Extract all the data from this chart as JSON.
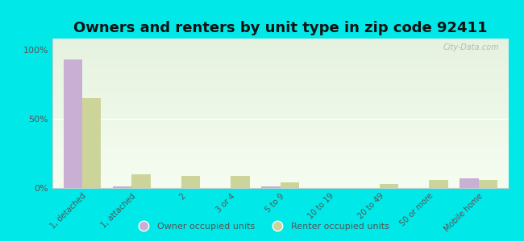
{
  "title": "Owners and renters by unit type in zip code 92411",
  "categories": [
    "1, detached",
    "1, attached",
    "2",
    "3 or 4",
    "5 to 9",
    "10 to 19",
    "20 to 49",
    "50 or more",
    "Mobile home"
  ],
  "owner_values": [
    93,
    1,
    0,
    0,
    1,
    0,
    0,
    0,
    7
  ],
  "renter_values": [
    65,
    10,
    9,
    9,
    4,
    0,
    3,
    6,
    6
  ],
  "owner_color": "#c9afd4",
  "renter_color": "#ccd49a",
  "background_color": "#00e8e8",
  "plot_bg_top": "#e6f2e0",
  "plot_bg_bottom": "#f5fdf0",
  "ylabel": "",
  "yticks": [
    0,
    50,
    100
  ],
  "ytick_labels": [
    "0%",
    "50%",
    "100%"
  ],
  "watermark": "City-Data.com",
  "legend_owner": "Owner occupied units",
  "legend_renter": "Renter occupied units",
  "bar_width": 0.38,
  "title_fontsize": 13,
  "grid_color": "#ffffff",
  "spine_color": "#cccccc"
}
